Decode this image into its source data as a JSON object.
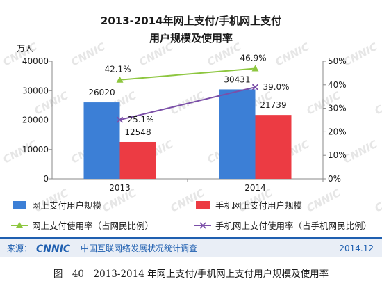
{
  "watermark": "CNNIC",
  "chart_data": {
    "type": "bar",
    "title_line1": "2013-2014年网上支付/手机网上支付",
    "title_line2": "用户规模及使用率",
    "y_unit": "万人",
    "categories": [
      "2013",
      "2014"
    ],
    "ylim": [
      0,
      40000
    ],
    "yticks": [
      "0",
      "10000",
      "20000",
      "30000",
      "40000"
    ],
    "y2lim": [
      0,
      50
    ],
    "y2ticks": [
      "0%",
      "10%",
      "20%",
      "30%",
      "40%",
      "50%"
    ],
    "series": [
      {
        "name": "网上支付用户规模",
        "kind": "bar",
        "color": "#3c7fd6",
        "values": [
          26020,
          30431
        ],
        "labels": [
          "26020",
          "30431"
        ]
      },
      {
        "name": "手机网上支付用户规模",
        "kind": "bar",
        "color": "#ec3b43",
        "values": [
          12548,
          21739
        ],
        "labels": [
          "12548",
          "21739"
        ]
      },
      {
        "name": "网上支付使用率（占网民比例）",
        "kind": "line",
        "axis": "right",
        "color": "#8dc63f",
        "values": [
          42.1,
          46.9
        ],
        "labels": [
          "42.1%",
          "46.9%"
        ]
      },
      {
        "name": "手机网上支付使用率（占手机网民比例）",
        "kind": "line",
        "axis": "right",
        "color": "#7b4fa8",
        "values": [
          25.1,
          39.0
        ],
        "labels": [
          "25.1%",
          "39.0%"
        ]
      }
    ],
    "grid": false,
    "legend_position": "bottom"
  },
  "footer": {
    "source_label": "来源：",
    "logo_text": "CNNIC",
    "org": "中国互联网络发展状况统计调查",
    "date": "2014.12"
  },
  "caption": "图　40　2013-2014 年网上支付/手机网上支付用户规模及使用率",
  "colors": {
    "footer_blue": "#1f5fb0",
    "footer_band": "#e9eef6"
  }
}
